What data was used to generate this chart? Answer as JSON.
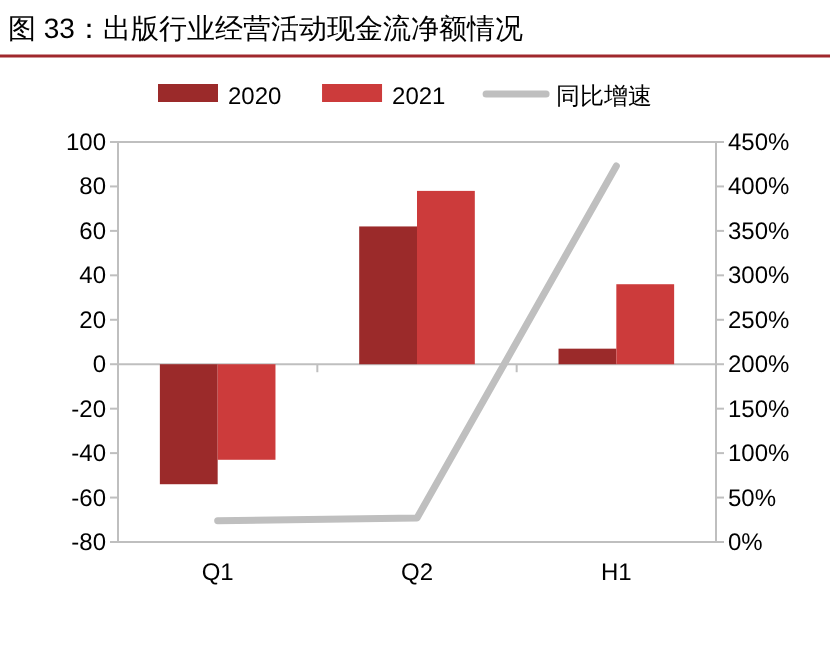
{
  "chart_data": {
    "type": "bar",
    "title": "图 33：出版行业经营活动现金流净额情况",
    "categories": [
      "Q1",
      "Q2",
      "H1"
    ],
    "series": [
      {
        "name": "2020",
        "color": "#9b2a2a",
        "values": [
          -54,
          62,
          7
        ]
      },
      {
        "name": "2021",
        "color": "#cc3b3b",
        "values": [
          -43,
          78,
          36
        ]
      },
      {
        "name": "同比增速",
        "type": "line",
        "axis": "y2",
        "color": "#bfbfbf",
        "values": [
          24,
          27,
          423
        ]
      }
    ],
    "ylim": [
      -80,
      100
    ],
    "yticks": [
      -80,
      -60,
      -40,
      -20,
      0,
      20,
      40,
      60,
      80,
      100
    ],
    "y2lim": [
      0,
      450
    ],
    "y2ticks": [
      {
        "value": 0,
        "label": "0%"
      },
      {
        "value": 50,
        "label": "50%"
      },
      {
        "value": 100,
        "label": "100%"
      },
      {
        "value": 150,
        "label": "150%"
      },
      {
        "value": 200,
        "label": "200%"
      },
      {
        "value": 250,
        "label": "250%"
      },
      {
        "value": 300,
        "label": "300%"
      },
      {
        "value": 350,
        "label": "350%"
      },
      {
        "value": 400,
        "label": "400%"
      },
      {
        "value": 450,
        "label": "450%"
      }
    ],
    "legend": "top"
  }
}
